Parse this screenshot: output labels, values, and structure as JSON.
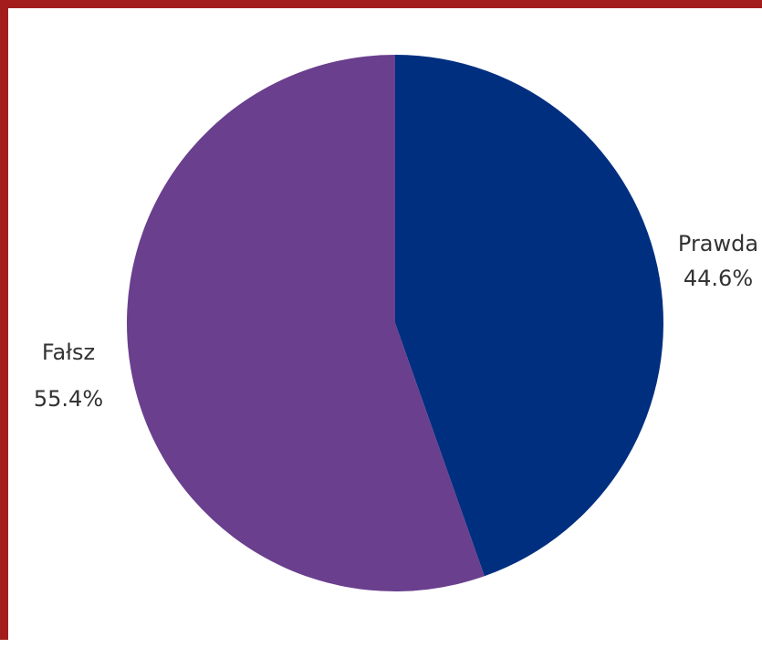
{
  "chart_data": {
    "type": "pie",
    "title": "",
    "categories": [
      "Prawda",
      "Fałsz"
    ],
    "values": [
      44.6,
      55.4
    ],
    "value_labels": [
      "44.6%",
      "55.4%"
    ],
    "colors": [
      "#002f80",
      "#6a3f8e"
    ],
    "start_angle": "12 o'clock",
    "direction": "clockwise",
    "label_placement": "outside"
  },
  "frame": {
    "accent_color": "#a31d1d"
  }
}
